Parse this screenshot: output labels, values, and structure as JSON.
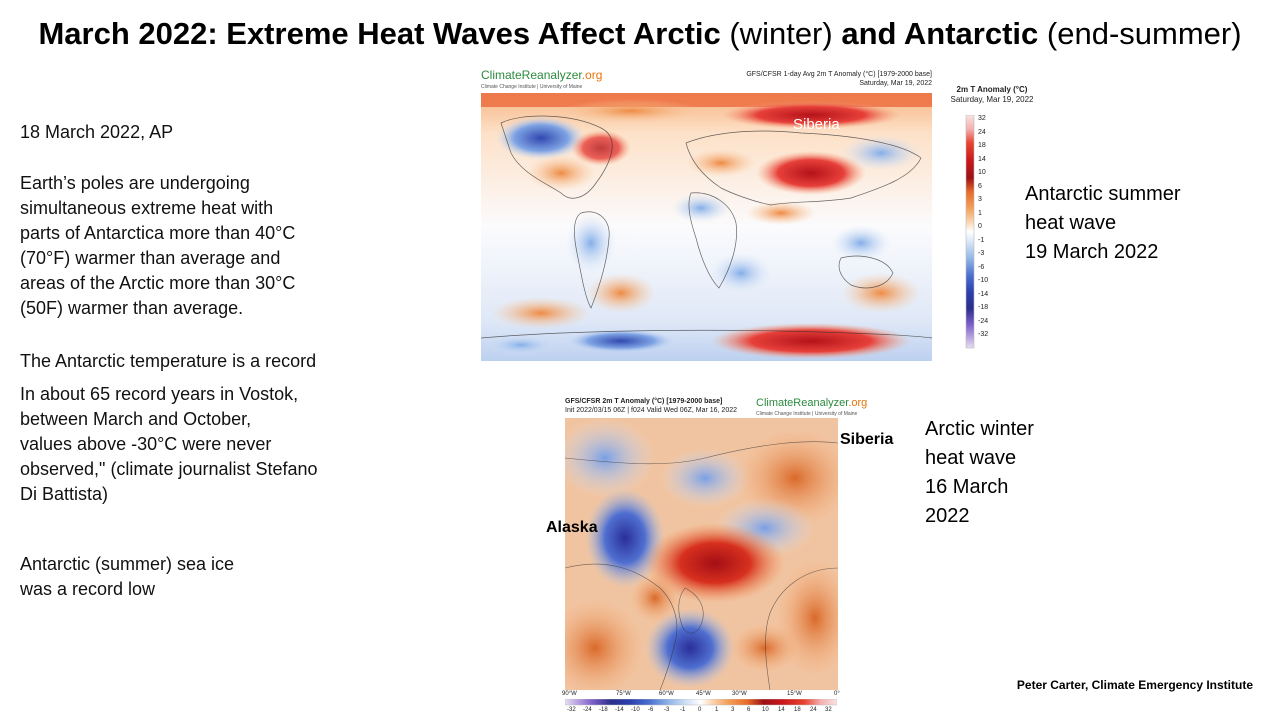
{
  "title": {
    "part1": "March 2022: Extreme Heat Waves Affect Arctic",
    "part2": " (winter) ",
    "part3": "and Antarctic",
    "part4": " (end-summer)"
  },
  "left": {
    "date_line": "18 March 2022, AP",
    "para1": [
      "Earth’s poles are undergoing",
      "simultaneous extreme heat with",
      "parts of Antarctica more than 40°C",
      "(70°F) warmer than average and",
      "areas of the Arctic more than 30°C",
      "(50F) warmer than average."
    ],
    "record_line": "The Antarctic temperature  is a record",
    "para2": [
      "In about 65 record years in Vostok,",
      "between March and October,",
      "values above -30°C were never",
      "observed,\"  (climate journalist Stefano",
      "Di Battista)"
    ],
    "para3": [
      "Antarctic (summer) sea ice",
      "was a record low"
    ]
  },
  "map1": {
    "logo_main": "ClimateReanalyzer",
    "logo_org": ".org",
    "logo_sub": "Climate Change Institute | University of Maine",
    "header_line1": "GFS/CFSR 1-day Avg 2m T Anomaly (°C) [1979-2000 base]",
    "header_line2": "Saturday, Mar 19, 2022",
    "legend_title_1": "2m T Anomaly (°C)",
    "legend_title_2": "Saturday, Mar 19, 2022",
    "label_siberia": "Siberia",
    "ticks": [
      "32",
      "24",
      "18",
      "14",
      "10",
      "6",
      "3",
      "1",
      "0",
      "-1",
      "-3",
      "-6",
      "-10",
      "-14",
      "-18",
      "-24",
      "-32"
    ],
    "caption": [
      "Antarctic summer",
      "heat wave",
      "19 March 2022"
    ]
  },
  "map2": {
    "header_line1": "GFS/CFSR 2m T Anomaly (°C) [1979-2000 base]",
    "header_line2": "Init 2022/03/15 06Z | f024 Valid Wed 06Z, Mar 16, 2022",
    "logo_main": "ClimateReanalyzer",
    "logo_org": ".org",
    "logo_sub": "Climate Change Institute | University of Maine",
    "label_siberia": "Siberia",
    "label_alaska": "Alaska",
    "lon_ticks": [
      "90°W",
      "75°W",
      "60°W",
      "45°W",
      "30°W",
      "15°W",
      "0°"
    ],
    "ticks": [
      "-32",
      "-24",
      "-18",
      "-14",
      "-10",
      "-6",
      "-3",
      "-1",
      "0",
      "1",
      "3",
      "6",
      "10",
      "14",
      "18",
      "24",
      "32"
    ],
    "caption": [
      "Arctic winter",
      "heat wave",
      "16 March",
      "2022"
    ]
  },
  "credit": "Peter Carter, Climate Emergency Institute",
  "colors": {
    "hot": "#c8161c",
    "warm": "#f3a05a",
    "cold": "#2c3fae",
    "cool": "#8fb3e6",
    "neutral": "#ffffff"
  }
}
